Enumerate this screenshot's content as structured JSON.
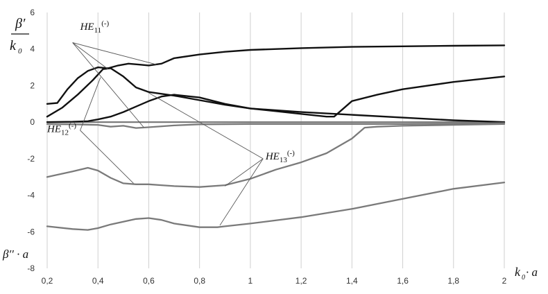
{
  "chart_data": {
    "type": "line",
    "xlabel": {
      "main": "k",
      "sub": "0",
      "tail": " · a"
    },
    "ylabel_top": {
      "num": "β′",
      "den_main": "k",
      "den_sub": "0"
    },
    "ylabel_bottom": "β′′ · a",
    "xlim": [
      0.2,
      2.0
    ],
    "ylim": [
      -8,
      6
    ],
    "x_ticks": [
      0.2,
      0.4,
      0.6,
      0.8,
      1.0,
      1.2,
      1.4,
      1.6,
      1.8,
      2.0
    ],
    "x_tick_labels": [
      "0,2",
      "0,4",
      "0,6",
      "0,8",
      "1",
      "1,2",
      "1,4",
      "1,6",
      "1,8",
      "2"
    ],
    "y_ticks": [
      -8,
      -6,
      -4,
      -2,
      0,
      2,
      4,
      6
    ],
    "y_tick_labels": [
      "-8",
      "-6",
      "-4",
      "-2",
      "0",
      "2",
      "4",
      "6"
    ],
    "grid": "vertical",
    "colors": {
      "real_parts": "#111111",
      "imag_parts": "#7a7a7a",
      "grid": "#cfcfcf"
    },
    "series": [
      {
        "group": "real",
        "x": [
          0.2,
          0.24,
          0.28,
          0.32,
          0.36,
          0.4,
          0.44,
          0.48,
          0.52,
          0.56,
          0.6,
          0.65,
          0.7,
          0.8,
          0.9,
          1.0,
          1.2,
          1.4,
          1.6,
          1.8,
          2.0
        ],
        "y": [
          1.0,
          1.05,
          1.8,
          2.4,
          2.8,
          3.0,
          2.95,
          3.1,
          3.2,
          3.15,
          3.1,
          3.2,
          3.5,
          3.7,
          3.85,
          3.95,
          4.05,
          4.12,
          4.15,
          4.18,
          4.2
        ]
      },
      {
        "group": "real",
        "x": [
          0.2,
          0.26,
          0.32,
          0.38,
          0.42,
          0.45,
          0.5,
          0.55,
          0.6,
          0.65,
          0.7,
          0.8,
          0.9,
          1.0,
          1.2,
          1.4,
          1.6,
          1.8,
          2.0
        ],
        "y": [
          0.3,
          0.8,
          1.5,
          2.3,
          2.9,
          2.95,
          2.5,
          1.9,
          1.65,
          1.55,
          1.45,
          1.2,
          0.95,
          0.75,
          0.55,
          0.4,
          0.25,
          0.1,
          0.0
        ]
      },
      {
        "group": "real",
        "x": [
          0.2,
          0.3,
          0.36,
          0.4,
          0.45,
          0.5,
          0.55,
          0.6,
          0.65,
          0.7,
          0.8,
          0.9,
          1.0,
          1.1,
          1.2,
          1.3,
          1.33,
          1.4,
          1.5,
          1.6,
          1.8,
          2.0
        ],
        "y": [
          0.0,
          0.02,
          0.05,
          0.15,
          0.3,
          0.55,
          0.85,
          1.15,
          1.4,
          1.5,
          1.35,
          1.0,
          0.75,
          0.6,
          0.45,
          0.3,
          0.3,
          1.15,
          1.5,
          1.8,
          2.2,
          2.5
        ]
      },
      {
        "group": "imag",
        "x": [
          0.2,
          0.3,
          0.36,
          0.4,
          0.45,
          0.5,
          0.55,
          0.6,
          0.65,
          0.7,
          0.8,
          0.9,
          1.0,
          1.1,
          1.2,
          1.3,
          1.4,
          1.45,
          1.5,
          1.6,
          1.8,
          2.0
        ],
        "y": [
          -3.0,
          -2.7,
          -2.5,
          -2.65,
          -3.05,
          -3.35,
          -3.4,
          -3.4,
          -3.45,
          -3.5,
          -3.55,
          -3.45,
          -3.1,
          -2.6,
          -2.2,
          -1.7,
          -0.9,
          -0.3,
          -0.25,
          -0.2,
          -0.15,
          -0.1
        ]
      },
      {
        "group": "imag",
        "x": [
          0.2,
          0.3,
          0.36,
          0.4,
          0.45,
          0.5,
          0.55,
          0.6,
          0.65,
          0.7,
          0.8,
          0.87,
          0.9,
          1.0,
          1.2,
          1.4,
          1.6,
          1.8,
          2.0
        ],
        "y": [
          -5.7,
          -5.85,
          -5.9,
          -5.8,
          -5.6,
          -5.45,
          -5.3,
          -5.25,
          -5.35,
          -5.55,
          -5.75,
          -5.75,
          -5.7,
          -5.55,
          -5.2,
          -4.75,
          -4.2,
          -3.65,
          -3.3
        ]
      },
      {
        "group": "imag",
        "x": [
          0.2,
          0.3,
          0.4,
          0.45,
          0.5,
          0.55,
          0.6,
          0.7,
          0.8,
          1.0,
          1.2,
          1.4,
          1.6,
          1.8,
          2.0
        ],
        "y": [
          -0.1,
          -0.12,
          -0.15,
          -0.25,
          -0.2,
          -0.32,
          -0.28,
          -0.18,
          -0.12,
          -0.1,
          -0.1,
          -0.1,
          -0.1,
          -0.08,
          -0.05
        ]
      }
    ],
    "annotations": [
      {
        "main": "HE",
        "sub": "11",
        "sup": "(-)",
        "at": [
          0.33,
          5.05
        ],
        "pointers": [
          [
            0.3,
            4.35,
            0.63,
            3.15
          ],
          [
            0.3,
            4.35,
            0.44,
            2.9
          ],
          [
            0.3,
            4.35,
            0.58,
            -0.28
          ]
        ]
      },
      {
        "main": "HE",
        "sub": "12",
        "sup": "(-)",
        "at": [
          0.2,
          -0.55
        ],
        "pointers": [
          [
            0.33,
            -0.45,
            0.41,
            2.45
          ],
          [
            0.33,
            -0.45,
            0.54,
            -3.35
          ]
        ]
      },
      {
        "main": "HE",
        "sub": "13",
        "sup": "(-)",
        "at": [
          1.06,
          -2.05
        ],
        "pointers": [
          [
            1.05,
            -2.0,
            0.6,
            1.6
          ],
          [
            1.05,
            -2.0,
            0.88,
            -5.65
          ],
          [
            1.05,
            -2.0,
            0.9,
            -3.5
          ]
        ]
      }
    ]
  }
}
